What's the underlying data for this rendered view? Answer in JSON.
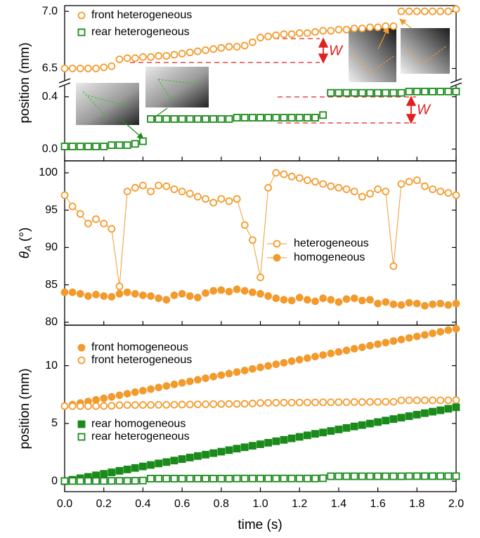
{
  "chart_data": [
    {
      "type": "scatter",
      "ylabel": "position (mm)",
      "xlim": [
        0,
        2
      ],
      "x": [
        0,
        0.04,
        0.08,
        0.12,
        0.16,
        0.2,
        0.24,
        0.28,
        0.32,
        0.36,
        0.4,
        0.44,
        0.48,
        0.52,
        0.56,
        0.6,
        0.64,
        0.68,
        0.72,
        0.76,
        0.8,
        0.84,
        0.88,
        0.92,
        0.96,
        1,
        1.04,
        1.08,
        1.12,
        1.16,
        1.2,
        1.24,
        1.28,
        1.32,
        1.36,
        1.4,
        1.44,
        1.48,
        1.52,
        1.56,
        1.6,
        1.64,
        1.68,
        1.72,
        1.76,
        1.8,
        1.84,
        1.88,
        1.92,
        1.96,
        2
      ],
      "ylim": [
        6.38,
        7.05
      ],
      "yticks": [
        6.5,
        {
          "value": 7,
          "label": "7.0"
        }
      ],
      "annotations": [
        "W"
      ],
      "series": [
        {
          "name": "front heterogeneous",
          "color": "#f39a2c",
          "marker": "circle",
          "filled": false,
          "values": [
            6.5,
            6.5,
            6.5,
            6.5,
            6.5,
            6.51,
            6.52,
            6.58,
            6.59,
            6.59,
            6.6,
            6.6,
            6.61,
            6.61,
            6.62,
            6.63,
            6.64,
            6.65,
            6.66,
            6.67,
            6.68,
            6.69,
            6.69,
            6.7,
            6.73,
            6.77,
            6.78,
            6.79,
            6.8,
            6.8,
            6.81,
            6.81,
            6.82,
            6.83,
            6.83,
            6.84,
            6.84,
            6.85,
            6.85,
            6.86,
            6.86,
            6.87,
            6.87,
            7,
            7,
            7,
            7,
            7,
            7,
            7,
            7.02
          ]
        }
      ]
    },
    {
      "type": "scatter",
      "xlim": [
        0,
        2
      ],
      "x": [
        0,
        0.04,
        0.08,
        0.12,
        0.16,
        0.2,
        0.24,
        0.28,
        0.32,
        0.36,
        0.4,
        0.44,
        0.48,
        0.52,
        0.56,
        0.6,
        0.64,
        0.68,
        0.72,
        0.76,
        0.8,
        0.84,
        0.88,
        0.92,
        0.96,
        1,
        1.04,
        1.08,
        1.12,
        1.16,
        1.2,
        1.24,
        1.28,
        1.32,
        1.36,
        1.4,
        1.44,
        1.48,
        1.52,
        1.56,
        1.6,
        1.64,
        1.68,
        1.72,
        1.76,
        1.8,
        1.84,
        1.88,
        1.92,
        1.96,
        2
      ],
      "ylim": [
        -0.09,
        0.49
      ],
      "yticks": [
        {
          "value": 0,
          "label": "0.0"
        },
        0.4
      ],
      "annotations": [
        "W"
      ],
      "series": [
        {
          "name": "rear heterogeneous",
          "color": "#1a8a1a",
          "marker": "square",
          "filled": false,
          "values": [
            0.02,
            0.02,
            0.02,
            0.02,
            0.02,
            0.02,
            0.03,
            0.03,
            0.03,
            0.04,
            0.06,
            0.23,
            0.23,
            0.23,
            0.23,
            0.23,
            0.23,
            0.23,
            0.23,
            0.23,
            0.23,
            0.23,
            0.24,
            0.24,
            0.24,
            0.24,
            0.24,
            0.24,
            0.24,
            0.24,
            0.24,
            0.24,
            0.24,
            0.26,
            0.43,
            0.43,
            0.43,
            0.43,
            0.43,
            0.43,
            0.43,
            0.43,
            0.43,
            0.43,
            0.44,
            0.44,
            0.44,
            0.44,
            0.44,
            0.44,
            0.44
          ]
        }
      ]
    },
    {
      "type": "line",
      "ylabel": {
        "symbol": "θ",
        "subscript": "A",
        "unit": " (°)"
      },
      "xlim": [
        0,
        2
      ],
      "x": [
        0,
        0.04,
        0.08,
        0.12,
        0.16,
        0.2,
        0.24,
        0.28,
        0.32,
        0.36,
        0.4,
        0.44,
        0.48,
        0.52,
        0.56,
        0.6,
        0.64,
        0.68,
        0.72,
        0.76,
        0.8,
        0.84,
        0.88,
        0.92,
        0.96,
        1,
        1.04,
        1.08,
        1.12,
        1.16,
        1.2,
        1.24,
        1.28,
        1.32,
        1.36,
        1.4,
        1.44,
        1.48,
        1.52,
        1.56,
        1.6,
        1.64,
        1.68,
        1.72,
        1.76,
        1.8,
        1.84,
        1.88,
        1.92,
        1.96,
        2
      ],
      "ylim": [
        79.6,
        101.6
      ],
      "yticks": [
        80,
        85,
        90,
        95,
        100
      ],
      "series": [
        {
          "name": "heterogeneous",
          "color": "#f39a2c",
          "marker": "circle",
          "filled": false,
          "values": [
            97,
            95.5,
            94.5,
            93.2,
            93.8,
            93.2,
            92.5,
            84.8,
            97.5,
            98,
            98.3,
            97.5,
            98.3,
            98.2,
            97.8,
            97.5,
            97.2,
            96.8,
            96.5,
            96,
            96.5,
            96.2,
            96.5,
            93,
            91,
            86,
            98,
            100,
            99.8,
            99.5,
            99.3,
            99,
            98.8,
            98.5,
            98.2,
            98,
            97.8,
            97.5,
            96.8,
            97.2,
            97.8,
            97.5,
            87.5,
            98.5,
            98.8,
            99,
            98.2,
            97.8,
            97.5,
            97.3,
            97
          ]
        },
        {
          "name": "homogeneous",
          "color": "#f39a2c",
          "marker": "circle",
          "filled": true,
          "values": [
            84,
            84,
            83.8,
            83.5,
            83.7,
            83.5,
            83.4,
            83.8,
            84,
            83.8,
            83.6,
            83.5,
            83.2,
            83,
            83.6,
            83.8,
            83.5,
            83.3,
            83.9,
            84.2,
            84.3,
            84.1,
            84.4,
            84.2,
            84,
            83.8,
            83.5,
            83.2,
            83,
            82.9,
            83.3,
            83,
            82.8,
            83.2,
            83,
            82.7,
            83.1,
            83.2,
            82.9,
            83,
            82.5,
            82.7,
            82.4,
            82.3,
            82.6,
            82.5,
            82.2,
            82.4,
            82.5,
            82.3,
            82.5
          ]
        }
      ]
    },
    {
      "type": "scatter",
      "ylabel": "position (mm)",
      "xlabel": "time (s)",
      "xlim": [
        0,
        2
      ],
      "x": [
        0,
        0.04,
        0.08,
        0.12,
        0.16,
        0.2,
        0.24,
        0.28,
        0.32,
        0.36,
        0.4,
        0.44,
        0.48,
        0.52,
        0.56,
        0.6,
        0.64,
        0.68,
        0.72,
        0.76,
        0.8,
        0.84,
        0.88,
        0.92,
        0.96,
        1,
        1.04,
        1.08,
        1.12,
        1.16,
        1.2,
        1.24,
        1.28,
        1.32,
        1.36,
        1.4,
        1.44,
        1.48,
        1.52,
        1.56,
        1.6,
        1.64,
        1.68,
        1.72,
        1.76,
        1.8,
        1.84,
        1.88,
        1.92,
        1.96,
        2
      ],
      "xticks": [
        {
          "value": 0,
          "label": "0.0"
        },
        0.2,
        0.4,
        0.6,
        0.8,
        {
          "value": 1,
          "label": "1.0"
        },
        1.2,
        1.4,
        1.6,
        1.8,
        {
          "value": 2,
          "label": "2.0"
        }
      ],
      "ylim": [
        -0.9,
        13.5
      ],
      "yticks": [
        0,
        5,
        10
      ],
      "series": [
        {
          "name": "front homogeneous",
          "color": "#f39a2c",
          "marker": "circle",
          "filled": true,
          "values": [
            6.5,
            6.63,
            6.77,
            6.9,
            7.04,
            7.17,
            7.3,
            7.44,
            7.57,
            7.71,
            7.84,
            7.97,
            8.11,
            8.24,
            8.38,
            8.51,
            8.64,
            8.78,
            8.91,
            9.05,
            9.18,
            9.31,
            9.45,
            9.58,
            9.72,
            9.85,
            9.98,
            10.12,
            10.25,
            10.39,
            10.52,
            10.65,
            10.79,
            10.92,
            11.06,
            11.19,
            11.32,
            11.46,
            11.59,
            11.73,
            11.86,
            11.99,
            12.13,
            12.26,
            12.4,
            12.53,
            12.66,
            12.8,
            12.93,
            13.07,
            13.2
          ]
        },
        {
          "name": "front heterogeneous",
          "color": "#f39a2c",
          "marker": "circle",
          "filled": false,
          "values": [
            6.5,
            6.5,
            6.5,
            6.5,
            6.5,
            6.51,
            6.52,
            6.58,
            6.59,
            6.59,
            6.6,
            6.6,
            6.61,
            6.61,
            6.62,
            6.63,
            6.64,
            6.65,
            6.66,
            6.67,
            6.68,
            6.69,
            6.69,
            6.7,
            6.73,
            6.77,
            6.78,
            6.79,
            6.8,
            6.8,
            6.81,
            6.81,
            6.82,
            6.83,
            6.83,
            6.84,
            6.84,
            6.85,
            6.85,
            6.86,
            6.86,
            6.87,
            6.87,
            7,
            7,
            7,
            7,
            7,
            7,
            7,
            7.02
          ]
        },
        {
          "name": "rear homogeneous",
          "color": "#1a8a1a",
          "marker": "square",
          "filled": true,
          "values": [
            0,
            0.13,
            0.26,
            0.38,
            0.51,
            0.64,
            0.77,
            0.9,
            1.02,
            1.15,
            1.28,
            1.41,
            1.54,
            1.66,
            1.79,
            1.92,
            2.05,
            2.18,
            2.3,
            2.43,
            2.56,
            2.69,
            2.82,
            2.94,
            3.07,
            3.2,
            3.33,
            3.46,
            3.58,
            3.71,
            3.84,
            3.97,
            4.1,
            4.22,
            4.35,
            4.48,
            4.61,
            4.74,
            4.86,
            4.99,
            5.12,
            5.25,
            5.38,
            5.5,
            5.63,
            5.76,
            5.89,
            6.02,
            6.14,
            6.27,
            6.4
          ]
        },
        {
          "name": "rear heterogeneous",
          "color": "#1a8a1a",
          "marker": "square",
          "filled": false,
          "values": [
            0.02,
            0.02,
            0.02,
            0.02,
            0.02,
            0.02,
            0.03,
            0.03,
            0.03,
            0.04,
            0.06,
            0.23,
            0.23,
            0.23,
            0.23,
            0.23,
            0.23,
            0.23,
            0.23,
            0.23,
            0.23,
            0.23,
            0.24,
            0.24,
            0.24,
            0.24,
            0.24,
            0.24,
            0.24,
            0.24,
            0.24,
            0.24,
            0.24,
            0.26,
            0.43,
            0.43,
            0.43,
            0.43,
            0.43,
            0.43,
            0.43,
            0.43,
            0.43,
            0.43,
            0.44,
            0.44,
            0.44,
            0.44,
            0.44,
            0.44,
            0.44
          ]
        }
      ]
    }
  ]
}
